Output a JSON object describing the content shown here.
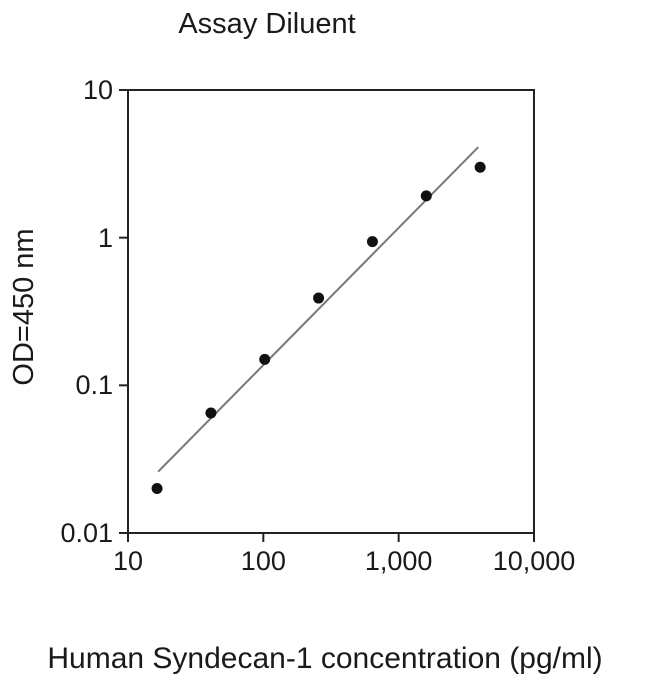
{
  "chart_data": {
    "type": "scatter",
    "title": "Assay Diluent",
    "xlabel": "Human Syndecan-1 concentration (pg/ml)",
    "ylabel": "OD=450 nm",
    "xscale": "log",
    "yscale": "log",
    "xlim": [
      10,
      10000
    ],
    "ylim": [
      0.01,
      10
    ],
    "grid": false,
    "legend": "none",
    "x_ticks": [
      {
        "value": 10,
        "label": "10"
      },
      {
        "value": 100,
        "label": "100"
      },
      {
        "value": 1000,
        "label": "1,000"
      },
      {
        "value": 10000,
        "label": "10,000"
      }
    ],
    "y_ticks": [
      {
        "value": 10,
        "label": "10"
      },
      {
        "value": 1,
        "label": "1"
      },
      {
        "value": 0.1,
        "label": "0.1"
      },
      {
        "value": 0.01,
        "label": "0.01"
      }
    ],
    "series": [
      {
        "name": "standard-curve-points",
        "points": [
          {
            "x": 16.4,
            "y": 0.02
          },
          {
            "x": 41,
            "y": 0.065
          },
          {
            "x": 102.4,
            "y": 0.15
          },
          {
            "x": 256,
            "y": 0.39
          },
          {
            "x": 640,
            "y": 0.94
          },
          {
            "x": 1600,
            "y": 1.92
          },
          {
            "x": 4000,
            "y": 3.0
          }
        ]
      }
    ],
    "fit_line": {
      "x1": 16.7,
      "y1": 0.026,
      "x2": 3870,
      "y2": 4.1
    },
    "colors": {
      "background": "#ffffff",
      "point": "#111111",
      "fit_line": "#777777",
      "axis": "#222222",
      "text": "#1a1a1a"
    }
  }
}
